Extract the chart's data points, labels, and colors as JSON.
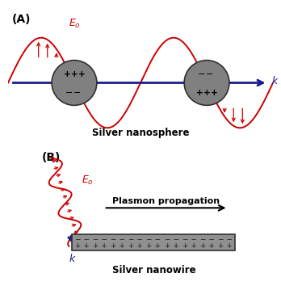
{
  "bg_color": "#ffffff",
  "panel_A_label": "(A)",
  "panel_B_label": "(B)",
  "wave_color": "#cc0000",
  "arrow_color": "#cc0000",
  "k_arrow_color": "#1a1a8c",
  "k_label": "k",
  "E0_label": "$E_o$",
  "sphere_color": "#808080",
  "sphere_edge": "#303030",
  "nanosphere_label": "Silver nanosphere",
  "nanowire_label": "Silver nanowire",
  "plasmon_label": "Plasmon propagation",
  "wire_color": "#909090",
  "wire_edge": "#303030",
  "charge_color": "#202020"
}
